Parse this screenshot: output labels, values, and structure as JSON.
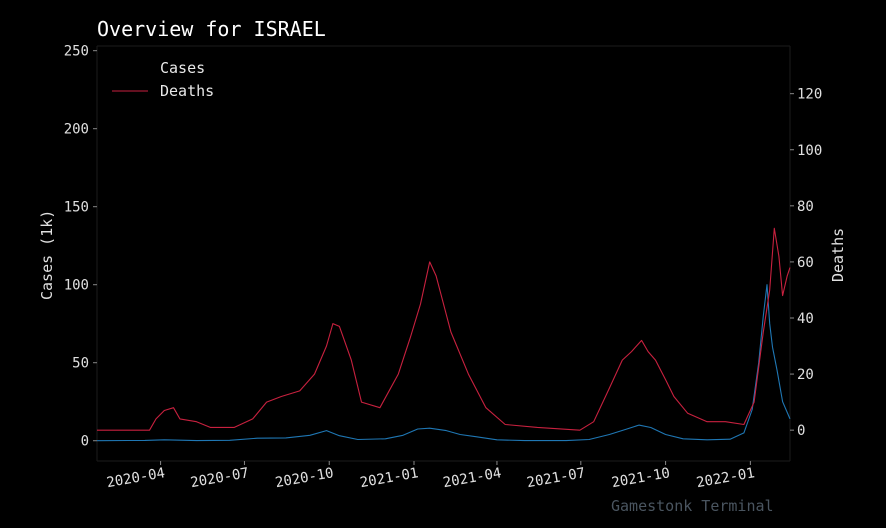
{
  "chart_data": {
    "type": "line",
    "title": "Overview for ISRAEL",
    "ylabel": "Cases (1k)",
    "y2label": "Deaths",
    "ylim": [
      -13,
      253
    ],
    "y2lim": [
      -11,
      137
    ],
    "yticks": [
      0,
      50,
      100,
      150,
      200,
      250
    ],
    "y2ticks": [
      0,
      20,
      40,
      60,
      80,
      100,
      120
    ],
    "xlim": [
      "2020-01-23",
      "2022-02-13"
    ],
    "xticks": [
      "2020-04",
      "2020-07",
      "2020-10",
      "2021-01",
      "2021-04",
      "2021-07",
      "2021-10",
      "2022-01"
    ],
    "grid": false,
    "legend_position": "top-left",
    "series": [
      {
        "name": "Cases",
        "axis": "left",
        "color": "#1f77b4",
        "points": [
          [
            "2020-01-23",
            0
          ],
          [
            "2020-03-15",
            0.2
          ],
          [
            "2020-04-05",
            0.6
          ],
          [
            "2020-05-10",
            0.1
          ],
          [
            "2020-06-15",
            0.3
          ],
          [
            "2020-07-15",
            1.6
          ],
          [
            "2020-08-15",
            1.8
          ],
          [
            "2020-09-10",
            3.5
          ],
          [
            "2020-09-28",
            6.5
          ],
          [
            "2020-10-12",
            3.2
          ],
          [
            "2020-11-01",
            0.8
          ],
          [
            "2020-12-01",
            1.2
          ],
          [
            "2020-12-20",
            3.5
          ],
          [
            "2021-01-05",
            7.5
          ],
          [
            "2021-01-18",
            8.0
          ],
          [
            "2021-02-05",
            6.5
          ],
          [
            "2021-02-20",
            4.0
          ],
          [
            "2021-03-10",
            2.5
          ],
          [
            "2021-04-01",
            0.6
          ],
          [
            "2021-05-01",
            0.1
          ],
          [
            "2021-06-15",
            0.1
          ],
          [
            "2021-07-10",
            0.8
          ],
          [
            "2021-08-01",
            4.0
          ],
          [
            "2021-08-20",
            7.5
          ],
          [
            "2021-09-02",
            10.0
          ],
          [
            "2021-09-15",
            8.5
          ],
          [
            "2021-10-01",
            4.0
          ],
          [
            "2021-10-20",
            1.2
          ],
          [
            "2021-11-15",
            0.6
          ],
          [
            "2021-12-10",
            1.0
          ],
          [
            "2021-12-25",
            5.0
          ],
          [
            "2022-01-03",
            20
          ],
          [
            "2022-01-10",
            50
          ],
          [
            "2022-01-15",
            80
          ],
          [
            "2022-01-19",
            100
          ],
          [
            "2022-01-22",
            75
          ],
          [
            "2022-01-25",
            60
          ],
          [
            "2022-01-30",
            45
          ],
          [
            "2022-02-05",
            25
          ],
          [
            "2022-02-13",
            14
          ]
        ]
      },
      {
        "name": "Deaths",
        "axis": "right",
        "color": "#c8213f",
        "points": [
          [
            "2020-01-23",
            0
          ],
          [
            "2020-03-20",
            0
          ],
          [
            "2020-03-27",
            4
          ],
          [
            "2020-04-05",
            7
          ],
          [
            "2020-04-15",
            8
          ],
          [
            "2020-04-22",
            4
          ],
          [
            "2020-05-10",
            3
          ],
          [
            "2020-05-25",
            1
          ],
          [
            "2020-06-20",
            1
          ],
          [
            "2020-07-10",
            4
          ],
          [
            "2020-07-25",
            10
          ],
          [
            "2020-08-10",
            12
          ],
          [
            "2020-08-30",
            14
          ],
          [
            "2020-09-15",
            20
          ],
          [
            "2020-09-28",
            30
          ],
          [
            "2020-10-05",
            38
          ],
          [
            "2020-10-12",
            37
          ],
          [
            "2020-10-25",
            25
          ],
          [
            "2020-11-05",
            10
          ],
          [
            "2020-11-25",
            8
          ],
          [
            "2020-12-15",
            20
          ],
          [
            "2020-12-28",
            33
          ],
          [
            "2021-01-08",
            45
          ],
          [
            "2021-01-18",
            60
          ],
          [
            "2021-01-25",
            55
          ],
          [
            "2021-02-10",
            35
          ],
          [
            "2021-03-01",
            20
          ],
          [
            "2021-03-20",
            8
          ],
          [
            "2021-04-10",
            2
          ],
          [
            "2021-05-15",
            1
          ],
          [
            "2021-06-30",
            0
          ],
          [
            "2021-07-15",
            3
          ],
          [
            "2021-08-01",
            15
          ],
          [
            "2021-08-15",
            25
          ],
          [
            "2021-08-25",
            28
          ],
          [
            "2021-09-05",
            32
          ],
          [
            "2021-09-12",
            28
          ],
          [
            "2021-09-20",
            25
          ],
          [
            "2021-10-01",
            18
          ],
          [
            "2021-10-10",
            12
          ],
          [
            "2021-10-25",
            6
          ],
          [
            "2021-11-15",
            3
          ],
          [
            "2021-12-05",
            3
          ],
          [
            "2021-12-25",
            2
          ],
          [
            "2022-01-05",
            10
          ],
          [
            "2022-01-15",
            35
          ],
          [
            "2022-01-22",
            50
          ],
          [
            "2022-01-27",
            72
          ],
          [
            "2022-02-01",
            62
          ],
          [
            "2022-02-05",
            48
          ],
          [
            "2022-02-10",
            55
          ],
          [
            "2022-02-13",
            58
          ]
        ]
      }
    ],
    "watermark": "Gamestonk Terminal"
  }
}
